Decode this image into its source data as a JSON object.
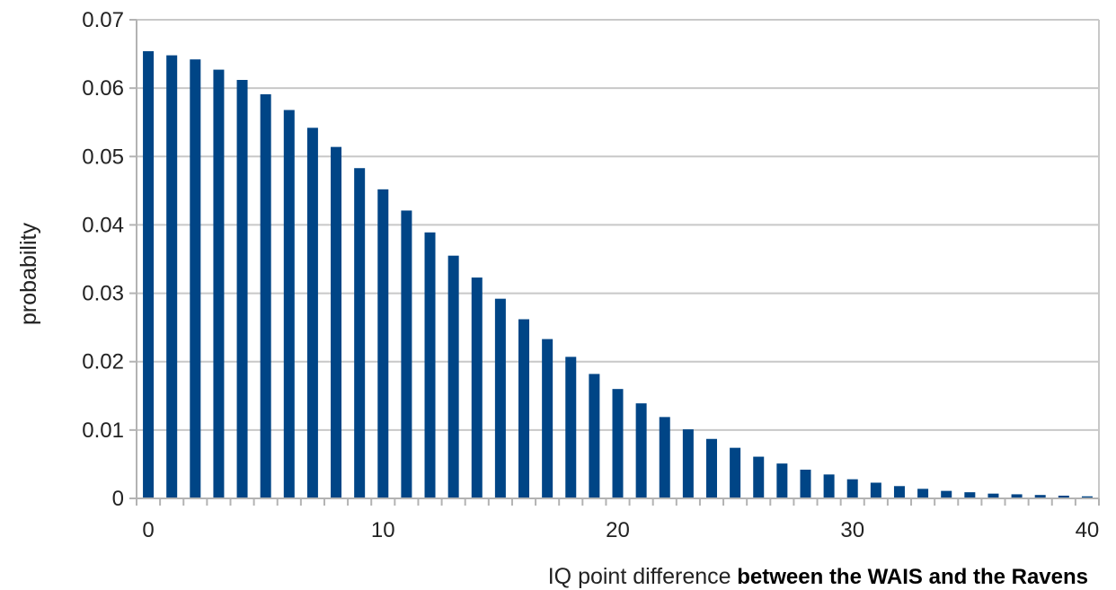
{
  "chart_data": {
    "type": "bar",
    "title": "",
    "xlabel_part1": "IQ point difference",
    "xlabel_part2": " between the WAIS and the Ravens",
    "ylabel": "probability",
    "x": [
      0,
      1,
      2,
      3,
      4,
      5,
      6,
      7,
      8,
      9,
      10,
      11,
      12,
      13,
      14,
      15,
      16,
      17,
      18,
      19,
      20,
      21,
      22,
      23,
      24,
      25,
      26,
      27,
      28,
      29,
      30,
      31,
      32,
      33,
      34,
      35,
      36,
      37,
      38,
      39,
      40
    ],
    "values": [
      0.0654,
      0.0648,
      0.0642,
      0.0627,
      0.0612,
      0.0591,
      0.0568,
      0.0542,
      0.0514,
      0.0483,
      0.0452,
      0.0421,
      0.0389,
      0.0355,
      0.0323,
      0.0292,
      0.0262,
      0.0233,
      0.0207,
      0.0182,
      0.016,
      0.0139,
      0.0119,
      0.0101,
      0.0087,
      0.0074,
      0.0061,
      0.0051,
      0.0042,
      0.0035,
      0.0028,
      0.0023,
      0.0018,
      0.0014,
      0.0011,
      0.0009,
      0.0007,
      0.0006,
      0.0005,
      0.0004,
      0.0003
    ],
    "ylim": [
      0,
      0.07
    ],
    "yticks": [
      "0",
      "0.01",
      "0.02",
      "0.03",
      "0.04",
      "0.05",
      "0.06",
      "0.07"
    ],
    "xlim": [
      -0.5,
      40.5
    ],
    "xticks": [
      "0",
      "10",
      "20",
      "30",
      "40"
    ],
    "grid": true,
    "bar_color": "#004586",
    "grid_color": "#c8c8c8",
    "axis_color": "#b3b3b3"
  }
}
